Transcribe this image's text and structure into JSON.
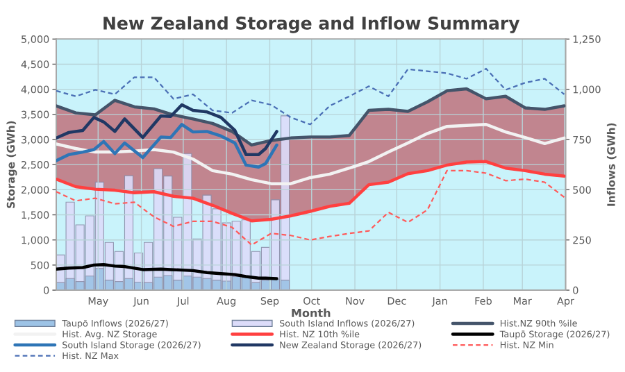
{
  "chart_data": {
    "type": "line",
    "title": "New Zealand Storage and Inflow Summary",
    "xlabel": "Month",
    "ylabel": "Storage (GWh)",
    "y2label": "Inflows (GWh)",
    "xlim": [
      "2026-04-01",
      "2027-04-01"
    ],
    "xticks": [
      {
        "value": "2026-05-01",
        "label": "May"
      },
      {
        "value": "2026-06-01",
        "label": "Jun"
      },
      {
        "value": "2026-07-01",
        "label": "Jul"
      },
      {
        "value": "2026-08-01",
        "label": "Aug"
      },
      {
        "value": "2026-09-01",
        "label": "Sep"
      },
      {
        "value": "2026-10-01",
        "label": "Oct"
      },
      {
        "value": "2026-11-01",
        "label": "Nov"
      },
      {
        "value": "2026-12-01",
        "label": "Dec"
      },
      {
        "value": "2027-01-01",
        "label": "Jan"
      },
      {
        "value": "2027-02-01",
        "label": "Feb"
      },
      {
        "value": "2027-03-01",
        "label": "Mar"
      },
      {
        "value": "2027-04-01",
        "label": "Apr"
      }
    ],
    "ylim": [
      0,
      5000
    ],
    "yticks": [
      0,
      500,
      {
        "value": 1000,
        "label": "1,000"
      },
      {
        "value": 1500,
        "label": "1,500"
      },
      {
        "value": 2000,
        "label": "2,000"
      },
      {
        "value": 2500,
        "label": "2,500"
      },
      {
        "value": 3000,
        "label": "3,000"
      },
      {
        "value": 3500,
        "label": "3,500"
      },
      {
        "value": 4000,
        "label": "4,000"
      },
      {
        "value": 4500,
        "label": "4,500"
      },
      {
        "value": 5000,
        "label": "5,000"
      }
    ],
    "y2lim": [
      0,
      1250
    ],
    "y2ticks": [
      0,
      250,
      500,
      750,
      {
        "value": 1000,
        "label": "1,000"
      },
      {
        "value": 1250,
        "label": "1,250"
      }
    ],
    "grid": true,
    "legend": "bottom",
    "marker": "none",
    "series": [
      {
        "name": "Taupō Inflows (2026/27)",
        "type": "bar",
        "axis": "y2",
        "color": "#9dc3e6",
        "x": [
          "2026-04-04",
          "2026-04-11",
          "2026-04-18",
          "2026-04-25",
          "2026-05-02",
          "2026-05-09",
          "2026-05-16",
          "2026-05-23",
          "2026-05-30",
          "2026-06-06",
          "2026-06-13",
          "2026-06-20",
          "2026-06-27",
          "2026-07-04",
          "2026-07-11",
          "2026-07-18",
          "2026-07-25",
          "2026-08-01",
          "2026-08-08",
          "2026-08-15",
          "2026-08-22",
          "2026-08-29",
          "2026-09-05",
          "2026-09-12"
        ],
        "values": [
          38,
          58,
          43,
          70,
          108,
          50,
          43,
          58,
          40,
          38,
          65,
          73,
          50,
          70,
          65,
          58,
          50,
          45,
          68,
          63,
          38,
          50,
          53,
          50
        ]
      },
      {
        "name": "South Island Inflows (2026/27)",
        "type": "bar",
        "axis": "y2",
        "color": "#dcdcfa",
        "x": [
          "2026-04-04",
          "2026-04-11",
          "2026-04-18",
          "2026-04-25",
          "2026-05-02",
          "2026-05-09",
          "2026-05-16",
          "2026-05-23",
          "2026-05-30",
          "2026-06-06",
          "2026-06-13",
          "2026-06-20",
          "2026-06-27",
          "2026-07-04",
          "2026-07-11",
          "2026-07-18",
          "2026-07-25",
          "2026-08-01",
          "2026-08-08",
          "2026-08-15",
          "2026-08-22",
          "2026-08-29",
          "2026-09-05",
          "2026-09-12"
        ],
        "values": [
          175,
          438,
          325,
          370,
          538,
          238,
          193,
          570,
          185,
          238,
          605,
          568,
          363,
          680,
          255,
          473,
          405,
          335,
          343,
          350,
          193,
          213,
          450,
          868
        ]
      },
      {
        "name": "Hist.NZ 90th %ile",
        "line_style": "solid",
        "color": "#44546a",
        "x": [
          "2026-04-01",
          "2026-04-15",
          "2026-04-29",
          "2026-05-13",
          "2026-05-27",
          "2026-06-10",
          "2026-06-24",
          "2026-07-08",
          "2026-07-22",
          "2026-08-05",
          "2026-08-19",
          "2026-09-02",
          "2026-09-16",
          "2026-09-30",
          "2026-10-14",
          "2026-10-28",
          "2026-11-11",
          "2026-11-25",
          "2026-12-09",
          "2026-12-23",
          "2027-01-06",
          "2027-01-20",
          "2027-02-03",
          "2027-02-17",
          "2027-03-03",
          "2027-03-17",
          "2027-03-31"
        ],
        "values": [
          3670,
          3530,
          3490,
          3780,
          3650,
          3610,
          3490,
          3410,
          3320,
          3160,
          2890,
          2980,
          3030,
          3050,
          3050,
          3080,
          3580,
          3600,
          3560,
          3750,
          3970,
          4010,
          3810,
          3860,
          3630,
          3600,
          3670
        ]
      },
      {
        "name": "Hist. Avg. NZ Storage",
        "line_style": "solid",
        "color": "#f2f2f2",
        "x": [
          "2026-04-01",
          "2026-04-15",
          "2026-04-29",
          "2026-05-13",
          "2026-05-27",
          "2026-06-10",
          "2026-06-24",
          "2026-07-08",
          "2026-07-22",
          "2026-08-05",
          "2026-08-19",
          "2026-09-02",
          "2026-09-16",
          "2026-09-30",
          "2026-10-14",
          "2026-10-28",
          "2026-11-11",
          "2026-11-25",
          "2026-12-09",
          "2026-12-23",
          "2027-01-06",
          "2027-01-20",
          "2027-02-03",
          "2027-02-17",
          "2027-03-03",
          "2027-03-17",
          "2027-03-31"
        ],
        "values": [
          2910,
          2820,
          2750,
          2750,
          2770,
          2800,
          2750,
          2610,
          2380,
          2310,
          2200,
          2120,
          2120,
          2240,
          2310,
          2430,
          2560,
          2750,
          2930,
          3120,
          3260,
          3280,
          3300,
          3150,
          3040,
          2920,
          3030
        ],
        "lower": [
          2210,
          2060,
          2010,
          1990,
          1940,
          1960,
          1870,
          1830,
          1690,
          1530,
          1380,
          1410,
          1480,
          1570,
          1670,
          1730,
          2100,
          2150,
          2320,
          2380,
          2490,
          2550,
          2560,
          2430,
          2380,
          2310,
          2270
        ],
        "upper": [
          3670,
          3530,
          3490,
          3780,
          3650,
          3610,
          3490,
          3410,
          3320,
          3160,
          2890,
          2980,
          3030,
          3050,
          3050,
          3080,
          3580,
          3600,
          3560,
          3750,
          3970,
          4010,
          3810,
          3860,
          3630,
          3600,
          3670
        ]
      },
      {
        "name": "Hist. NZ 10th %ile",
        "line_style": "solid",
        "color": "#ff4040",
        "x": [
          "2026-04-01",
          "2026-04-15",
          "2026-04-29",
          "2026-05-13",
          "2026-05-27",
          "2026-06-10",
          "2026-06-24",
          "2026-07-08",
          "2026-07-22",
          "2026-08-05",
          "2026-08-19",
          "2026-09-02",
          "2026-09-16",
          "2026-09-30",
          "2026-10-14",
          "2026-10-28",
          "2026-11-11",
          "2026-11-25",
          "2026-12-09",
          "2026-12-23",
          "2027-01-06",
          "2027-01-20",
          "2027-02-03",
          "2027-02-17",
          "2027-03-03",
          "2027-03-17",
          "2027-03-31"
        ],
        "values": [
          2210,
          2060,
          2010,
          1990,
          1940,
          1960,
          1870,
          1830,
          1690,
          1530,
          1380,
          1410,
          1480,
          1570,
          1670,
          1730,
          2100,
          2150,
          2320,
          2380,
          2490,
          2550,
          2560,
          2430,
          2380,
          2310,
          2270
        ]
      },
      {
        "name": "Taupō Storage (2026/27)",
        "line_style": "solid",
        "color": "#000000",
        "x": [
          "2026-04-01",
          "2026-04-10",
          "2026-04-20",
          "2026-04-28",
          "2026-05-05",
          "2026-05-13",
          "2026-05-20",
          "2026-06-02",
          "2026-06-15",
          "2026-06-22",
          "2026-06-30",
          "2026-07-08",
          "2026-07-18",
          "2026-07-28",
          "2026-08-07",
          "2026-08-15",
          "2026-08-24",
          "2026-08-29",
          "2026-09-06"
        ],
        "values": [
          420,
          440,
          450,
          500,
          510,
          480,
          470,
          410,
          420,
          410,
          400,
          390,
          350,
          330,
          310,
          270,
          240,
          240,
          230
        ]
      },
      {
        "name": "South Island Storage (2026/27)",
        "line_style": "solid",
        "color": "#2e75b6",
        "x": [
          "2026-04-01",
          "2026-04-10",
          "2026-04-20",
          "2026-04-28",
          "2026-05-05",
          "2026-05-13",
          "2026-05-20",
          "2026-06-02",
          "2026-06-15",
          "2026-06-22",
          "2026-06-30",
          "2026-07-08",
          "2026-07-18",
          "2026-07-28",
          "2026-08-07",
          "2026-08-15",
          "2026-08-24",
          "2026-08-29",
          "2026-09-06"
        ],
        "values": [
          2580,
          2700,
          2750,
          2800,
          2960,
          2720,
          2930,
          2640,
          3050,
          3040,
          3300,
          3150,
          3160,
          3070,
          2930,
          2490,
          2450,
          2520,
          2890
        ]
      },
      {
        "name": "New Zealand Storage (2026/27)",
        "line_style": "solid",
        "color": "#203864",
        "x": [
          "2026-04-01",
          "2026-04-10",
          "2026-04-20",
          "2026-04-28",
          "2026-05-05",
          "2026-05-13",
          "2026-05-20",
          "2026-06-02",
          "2026-06-15",
          "2026-06-22",
          "2026-06-30",
          "2026-07-08",
          "2026-07-18",
          "2026-07-28",
          "2026-08-07",
          "2026-08-15",
          "2026-08-24",
          "2026-08-29",
          "2026-09-06"
        ],
        "values": [
          3030,
          3140,
          3180,
          3440,
          3350,
          3160,
          3410,
          3040,
          3470,
          3460,
          3690,
          3580,
          3550,
          3440,
          3180,
          2700,
          2700,
          2820,
          3160
        ]
      },
      {
        "name": "Hist. NZ Min",
        "line_style": "dashed",
        "color": "#ff5a5a",
        "x": [
          "2026-04-01",
          "2026-04-15",
          "2026-04-29",
          "2026-05-13",
          "2026-05-27",
          "2026-06-10",
          "2026-06-24",
          "2026-07-08",
          "2026-07-22",
          "2026-08-05",
          "2026-08-19",
          "2026-09-02",
          "2026-09-16",
          "2026-09-30",
          "2026-10-14",
          "2026-10-28",
          "2026-11-11",
          "2026-11-25",
          "2026-12-09",
          "2026-12-23",
          "2027-01-06",
          "2027-01-20",
          "2027-02-03",
          "2027-02-17",
          "2027-03-03",
          "2027-03-17",
          "2027-03-31"
        ],
        "values": [
          1960,
          1780,
          1830,
          1720,
          1750,
          1460,
          1270,
          1370,
          1370,
          1250,
          900,
          1130,
          1090,
          1000,
          1070,
          1130,
          1180,
          1550,
          1350,
          1600,
          2380,
          2380,
          2330,
          2180,
          2210,
          2150,
          1850
        ]
      },
      {
        "name": "Hist. NZ Max",
        "line_style": "dashed",
        "color": "#4a6fb5",
        "x": [
          "2026-04-01",
          "2026-04-15",
          "2026-04-29",
          "2026-05-13",
          "2026-05-27",
          "2026-06-10",
          "2026-06-24",
          "2026-07-08",
          "2026-07-22",
          "2026-08-05",
          "2026-08-19",
          "2026-09-02",
          "2026-09-16",
          "2026-09-30",
          "2026-10-14",
          "2026-10-28",
          "2026-11-11",
          "2026-11-25",
          "2026-12-09",
          "2026-12-23",
          "2027-01-06",
          "2027-01-20",
          "2027-02-03",
          "2027-02-17",
          "2027-03-03",
          "2027-03-17",
          "2027-03-31"
        ],
        "values": [
          3970,
          3860,
          3990,
          3900,
          4240,
          4240,
          3810,
          3900,
          3580,
          3530,
          3780,
          3690,
          3440,
          3300,
          3670,
          3860,
          4060,
          3860,
          4400,
          4360,
          4320,
          4210,
          4410,
          3990,
          4130,
          4210,
          3900
        ]
      }
    ]
  }
}
